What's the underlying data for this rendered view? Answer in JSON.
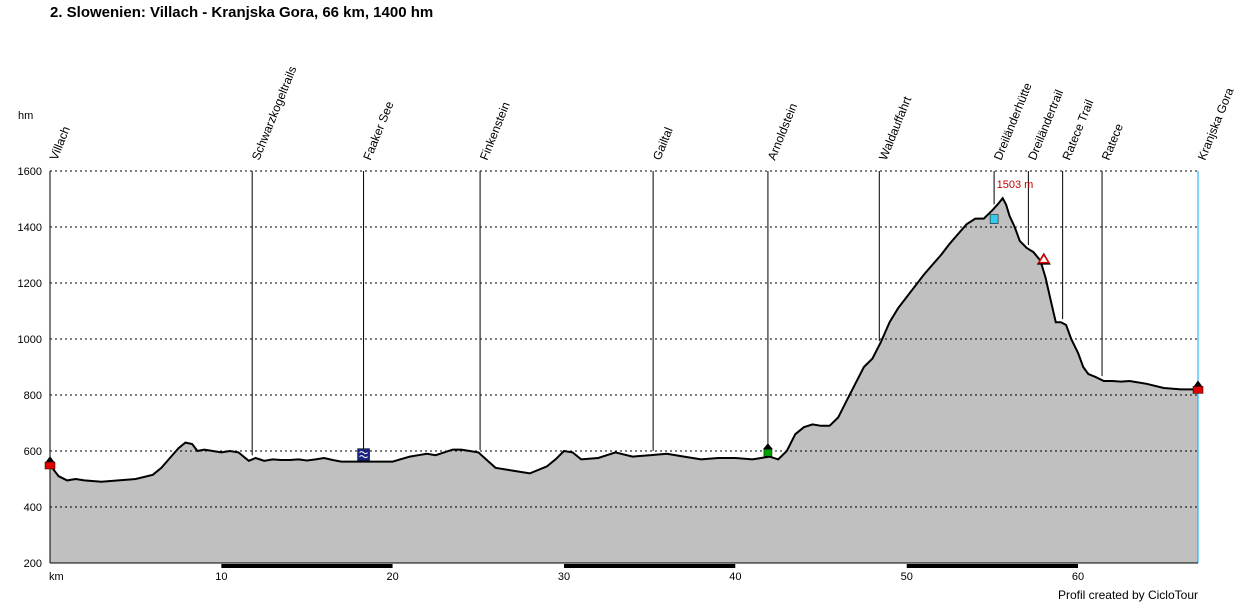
{
  "title": "2. Slowenien: Villach - Kranjska Gora, 66 km, 1400 hm",
  "credit": "Profil created by CicloTour",
  "chart_data": {
    "type": "area",
    "ylabel": "hm",
    "xlabel": "km",
    "xlim": [
      0,
      67
    ],
    "ylim": [
      200,
      1600
    ],
    "x_ticks": [
      10,
      20,
      30,
      40,
      50,
      60
    ],
    "y_ticks": [
      200,
      400,
      600,
      800,
      1000,
      1200,
      1400,
      1600
    ],
    "grid": true,
    "profile": {
      "x": [
        0,
        0.5,
        1,
        1.5,
        2,
        3,
        4,
        5,
        6,
        6.5,
        7,
        7.5,
        7.9,
        8.3,
        8.6,
        9,
        9.5,
        10,
        10.5,
        11,
        11.3,
        11.6,
        12,
        12.5,
        13,
        13.5,
        14,
        14.5,
        15,
        15.5,
        16,
        16.5,
        17,
        18,
        19,
        20,
        21,
        21.5,
        22,
        22.5,
        23,
        23.5,
        24,
        24.5,
        25,
        26,
        27,
        28,
        29,
        29.5,
        30,
        30.5,
        31,
        32,
        33,
        34,
        35,
        36,
        37,
        38,
        39,
        40,
        41,
        41.5,
        42,
        42.5,
        43,
        43.5,
        44,
        44.5,
        45,
        45.5,
        46,
        46.5,
        47,
        47.5,
        48,
        48.5,
        49,
        49.5,
        50,
        50.5,
        51,
        51.5,
        52,
        52.5,
        53,
        53.5,
        54,
        54.5,
        55,
        55.3,
        55.6,
        55.8,
        56,
        56.3,
        56.6,
        57,
        57.4,
        57.8,
        58.1,
        58.4,
        58.7,
        59,
        59.3,
        59.6,
        60,
        60.3,
        60.6,
        61,
        61.5,
        62,
        62.5,
        63,
        64,
        65,
        66,
        67
      ],
      "y": [
        550,
        510,
        495,
        500,
        495,
        490,
        495,
        500,
        515,
        540,
        575,
        610,
        630,
        625,
        600,
        605,
        600,
        595,
        600,
        595,
        580,
        565,
        575,
        565,
        570,
        568,
        568,
        570,
        566,
        570,
        575,
        568,
        562,
        562,
        562,
        562,
        580,
        585,
        590,
        585,
        595,
        605,
        605,
        600,
        595,
        540,
        530,
        520,
        545,
        570,
        600,
        595,
        570,
        575,
        595,
        580,
        585,
        590,
        580,
        570,
        575,
        575,
        570,
        575,
        580,
        570,
        600,
        660,
        685,
        695,
        690,
        690,
        720,
        780,
        840,
        900,
        930,
        990,
        1060,
        1110,
        1150,
        1190,
        1230,
        1265,
        1300,
        1340,
        1375,
        1410,
        1430,
        1430,
        1460,
        1480,
        1503,
        1480,
        1440,
        1400,
        1350,
        1325,
        1310,
        1280,
        1220,
        1140,
        1060,
        1060,
        1050,
        1000,
        950,
        900,
        875,
        865,
        850,
        850,
        848,
        850,
        840,
        825,
        820,
        820
      ]
    },
    "waypoints": [
      {
        "km": 0,
        "name": "Villach"
      },
      {
        "km": 11.8,
        "name": "Schwarzkogeltrails"
      },
      {
        "km": 18.3,
        "name": "Faaker See"
      },
      {
        "km": 25.1,
        "name": "Finkenstein"
      },
      {
        "km": 35.2,
        "name": "Gailtal"
      },
      {
        "km": 41.9,
        "name": "Arnoldstein"
      },
      {
        "km": 48.4,
        "name": "Waldauffahrt"
      },
      {
        "km": 55.1,
        "name": "Dreiländerhütte"
      },
      {
        "km": 57.1,
        "name": "Dreiländertrail"
      },
      {
        "km": 59.1,
        "name": "Ratece Trail"
      },
      {
        "km": 61.4,
        "name": "Ratece"
      },
      {
        "km": 67,
        "name": "Kranjska Gora"
      }
    ],
    "annotations": [
      {
        "km": 56.2,
        "elevation": 1503,
        "text": "1503 m"
      }
    ],
    "markers": [
      {
        "km": 0,
        "elevation": 550,
        "type": "start",
        "color": "#e00000"
      },
      {
        "km": 18.3,
        "elevation": 562,
        "type": "lake",
        "color": "#1a237e"
      },
      {
        "km": 41.9,
        "elevation": 585,
        "type": "town",
        "color": "#00a000"
      },
      {
        "km": 55.1,
        "elevation": 1430,
        "type": "hut",
        "color": "#33ccee"
      },
      {
        "km": 58,
        "elevation": 1280,
        "type": "summit",
        "color": "#e00000"
      },
      {
        "km": 67,
        "elevation": 820,
        "type": "finish",
        "color": "#e00000"
      }
    ],
    "colors": {
      "fill": "#c0c0c0",
      "line": "#000000",
      "grid": "#000000"
    }
  }
}
